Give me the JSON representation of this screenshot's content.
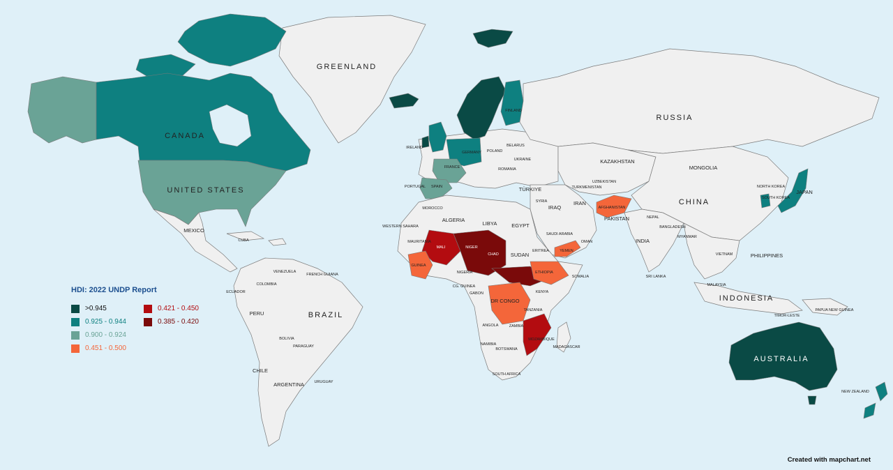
{
  "legend": {
    "title": "HDI: 2022 UNDP Report",
    "items": [
      {
        "label": ">0.945",
        "color": "#0a4a45",
        "text_color": "#111111"
      },
      {
        "label": "0.925 - 0.944",
        "color": "#0e8080",
        "text_color": "#0e8080"
      },
      {
        "label": "0.900 - 0.924",
        "color": "#6aa396",
        "text_color": "#6aa396"
      },
      {
        "label": "0.451 - 0.500",
        "color": "#f4663a",
        "text_color": "#f4663a"
      },
      {
        "label": "0.421 - 0.450",
        "color": "#b30c10",
        "text_color": "#b30c10"
      },
      {
        "label": "0.385 - 0.420",
        "color": "#7a0a0a",
        "text_color": "#7a0a0a"
      }
    ]
  },
  "labels": {
    "greenland": "GREENLAND",
    "canada": "CANADA",
    "united_states": "UNITED STATES",
    "russia": "RUSSIA",
    "china": "CHINA",
    "brazil": "BRAZIL",
    "australia": "AUSTRALIA",
    "indonesia": "INDONESIA",
    "kazakhstan": "KAZAKHSTAN",
    "mongolia": "MONGOLIA",
    "india": "INDIA",
    "iran": "IRAN",
    "iraq": "IRAQ",
    "pakistan": "PAKISTAN",
    "afghanistan": "AFGHANISTAN",
    "japan": "JAPAN",
    "philippines": "PHILIPPINES",
    "malaysia": "MALAYSIA",
    "papua": "PAPUA NEW GUINEA",
    "new_zealand": "NEW ZEALAND",
    "mexico": "MEXICO",
    "cuba": "CUBA",
    "venezuela": "VENEZUELA",
    "colombia": "COLOMBIA",
    "ecuador": "ECUADOR",
    "peru": "PERU",
    "bolivia": "BOLIVIA",
    "paraguay": "PARAGUAY",
    "chile": "CHILE",
    "argentina": "ARGENTINA",
    "uruguay": "URUGUAY",
    "french_guiana": "FRENCH GUIANA",
    "algeria": "ALGERIA",
    "libya": "LIBYA",
    "egypt": "EGYPT",
    "morocco": "MOROCCO",
    "western_sahara": "WESTERN SAHARA",
    "mauritania": "MAURITANIA",
    "mali": "MALI",
    "niger": "NIGER",
    "chad": "CHAD",
    "sudan": "SUDAN",
    "nigeria": "NIGERIA",
    "ethiopia": "ETHIOPIA",
    "somalia": "SOMALIA",
    "dr_congo": "DR CONGO",
    "kenya": "KENYA",
    "tanzania": "TANZANIA",
    "angola": "ANGOLA",
    "zambia": "ZAMBIA",
    "namibia": "NAMIBIA",
    "botswana": "BOTSWANA",
    "south_africa": "SOUTH AFRICA",
    "mozambique": "MOZAMBIQUE",
    "madagascar": "MADAGASCAR",
    "saudi_arabia": "SAUDI ARABIA",
    "yemen": "YEMEN",
    "oman": "OMAN",
    "eritrea": "ERITREA",
    "turkiye": "TÜRKIYE",
    "syria": "SYRIA",
    "ukraine": "UKRAINE",
    "poland": "POLAND",
    "belarus": "BELARUS",
    "romania": "ROMANIA",
    "france": "FRANCE",
    "spain": "SPAIN",
    "portugal": "PORTUGAL",
    "ireland": "IRELAND",
    "germany": "GERMANY",
    "finland": "FINLAND",
    "turkmenistan": "TURKMENISTAN",
    "uzbekistan": "UZBEKISTAN",
    "nepal": "NEPAL",
    "bangladesh": "BANGLADESH",
    "myanmar": "MYANMAR",
    "vietnam": "VIETNAM",
    "north_korea": "NORTH KOREA",
    "south_korea": "SOUTH KOREA",
    "sri_lanka": "SRI LANKA",
    "timor_leste": "TIMOR-LESTE",
    "guinea": "GUINEA",
    "cong": "CG. GUINEA",
    "gabon": "GABON"
  },
  "credit": "Created with mapchart.net"
}
